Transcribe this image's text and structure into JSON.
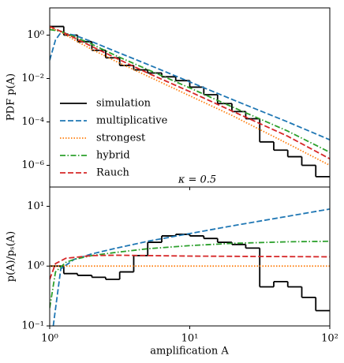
{
  "chart_data": [
    {
      "type": "line",
      "xscale": "log",
      "yscale": "log",
      "ylabel": "PDF p(A)",
      "annotation": "κ = 0.5",
      "legend": "lower left",
      "xlim": [
        1,
        100
      ],
      "ylim": [
        1e-07,
        18
      ],
      "yticks": [
        {
          "value": 1,
          "label": "10⁰"
        },
        {
          "value": 0.01,
          "label": "10⁻²"
        },
        {
          "value": 0.0001,
          "label": "10⁻⁴"
        },
        {
          "value": 1e-06,
          "label": "10⁻⁶"
        }
      ],
      "series": [
        {
          "name": "simulation",
          "type": "step",
          "color": "#000000",
          "dash": "solid",
          "bins": [
            1,
            1.26,
            1.58,
            2.0,
            2.51,
            3.16,
            3.98,
            5.01,
            6.31,
            7.94,
            10,
            12.6,
            15.8,
            20,
            25.1,
            31.6,
            39.8,
            50.1,
            63.1,
            79.4,
            100
          ],
          "values": [
            2.5,
            1.0,
            0.5,
            0.2,
            0.09,
            0.04,
            0.025,
            0.018,
            0.012,
            0.008,
            0.004,
            0.0018,
            0.0007,
            0.0003,
            0.00014,
            1.2e-05,
            5e-06,
            2.5e-06,
            1e-06,
            3e-07
          ]
        },
        {
          "name": "multiplicative",
          "type": "line",
          "color": "#1f77b4",
          "dash": "dashed",
          "x": [
            1,
            1.1,
            1.2,
            1.5,
            2,
            3,
            5,
            10,
            20,
            50,
            100
          ],
          "values": [
            0.07,
            0.6,
            1.3,
            1.0,
            0.5,
            0.17,
            0.045,
            0.007,
            0.0011,
            0.0001,
            1.5e-05
          ]
        },
        {
          "name": "strongest",
          "type": "line",
          "color": "#ff7f0e",
          "dash": "dotted",
          "x": [
            1,
            1.2,
            1.5,
            2,
            3,
            5,
            10,
            20,
            50,
            100
          ],
          "values": [
            2.2,
            1.4,
            0.6,
            0.22,
            0.06,
            0.013,
            0.0016,
            0.0002,
            1e-05,
            1e-06
          ]
        },
        {
          "name": "hybrid",
          "type": "line",
          "color": "#2ca02c",
          "dash": "dashdot",
          "x": [
            1,
            1.2,
            1.5,
            2,
            3,
            5,
            10,
            20,
            50,
            100
          ],
          "values": [
            1.8,
            1.5,
            0.85,
            0.38,
            0.11,
            0.026,
            0.0037,
            0.0005,
            3.8e-05,
            4e-06
          ]
        },
        {
          "name": "Rauch",
          "type": "line",
          "color": "#d62728",
          "dash": "dashed",
          "x": [
            1,
            1.2,
            1.5,
            2,
            3,
            5,
            10,
            20,
            50,
            100
          ],
          "values": [
            2.5,
            1.5,
            0.75,
            0.3,
            0.085,
            0.018,
            0.0025,
            0.00032,
            2.2e-05,
            2e-06
          ]
        }
      ]
    },
    {
      "type": "line",
      "xscale": "log",
      "yscale": "log",
      "xlabel": "amplification A",
      "ylabel": "p(A)/pₛ(A)",
      "xlim": [
        1,
        100
      ],
      "ylim": [
        0.1,
        21
      ],
      "xticks": [
        {
          "value": 1,
          "label": "10⁰"
        },
        {
          "value": 10,
          "label": "10¹"
        },
        {
          "value": 100,
          "label": "10²"
        }
      ],
      "yticks": [
        {
          "value": 10,
          "label": "10¹"
        },
        {
          "value": 1,
          "label": "10⁰"
        },
        {
          "value": 0.1,
          "label": "10⁻¹"
        }
      ],
      "series": [
        {
          "type": "step",
          "color": "#000000",
          "dash": "solid",
          "bins": [
            1,
            1.26,
            1.58,
            2.0,
            2.51,
            3.16,
            3.98,
            5.01,
            6.31,
            7.94,
            10,
            12.6,
            15.8,
            20,
            25.1,
            31.6,
            39.8,
            50.1,
            63.1,
            79.4,
            100
          ],
          "values": [
            1.0,
            0.75,
            0.7,
            0.65,
            0.6,
            0.8,
            1.5,
            2.5,
            3.2,
            3.4,
            3.2,
            2.9,
            2.5,
            2.3,
            2.0,
            0.45,
            0.55,
            0.45,
            0.3,
            0.18
          ]
        },
        {
          "type": "line",
          "color": "#1f77b4",
          "dash": "dashed",
          "x": [
            1.06,
            1.2,
            1.5,
            2,
            3,
            5,
            10,
            20,
            50,
            100
          ],
          "values": [
            0.1,
            0.9,
            1.3,
            1.6,
            2.0,
            2.6,
            3.5,
            4.7,
            6.8,
            9
          ]
        },
        {
          "type": "line",
          "color": "#ff7f0e",
          "dash": "dotted",
          "x": [
            1,
            100
          ],
          "values": [
            1,
            1
          ]
        },
        {
          "type": "line",
          "color": "#2ca02c",
          "dash": "dashdot",
          "x": [
            1,
            1.1,
            1.3,
            1.5,
            2,
            3,
            5,
            10,
            20,
            50,
            100
          ],
          "values": [
            0.2,
            0.8,
            1.15,
            1.3,
            1.5,
            1.7,
            1.95,
            2.2,
            2.4,
            2.55,
            2.6
          ]
        },
        {
          "type": "line",
          "color": "#d62728",
          "dash": "dashed",
          "x": [
            1,
            1.1,
            1.3,
            2,
            3,
            5,
            10,
            30,
            100
          ],
          "values": [
            0.6,
            1.1,
            1.35,
            1.5,
            1.52,
            1.5,
            1.47,
            1.45,
            1.43
          ]
        }
      ]
    }
  ]
}
